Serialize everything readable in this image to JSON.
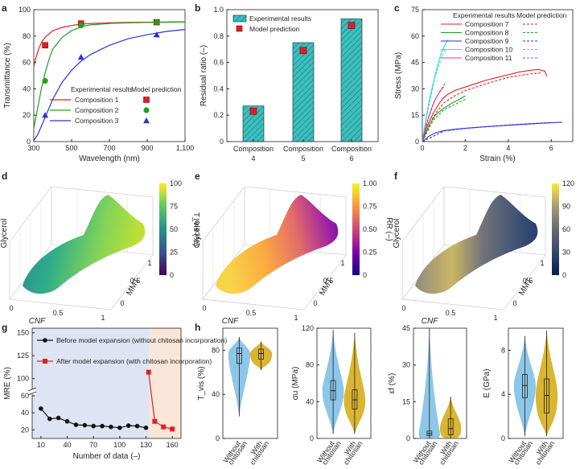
{
  "panels": [
    "a",
    "b",
    "c",
    "d",
    "e",
    "f",
    "g",
    "h"
  ],
  "colors": {
    "red": "#e41e26",
    "green": "#1ea21e",
    "blue": "#2b32d8",
    "magenta": "#e6338f",
    "cyan": "#2ed7e0",
    "teal_bar": "#3bbfbf",
    "violin_blue": "#7fc1e6",
    "violin_yellow": "#d6ad1c",
    "bg_blue": "#dde5f4",
    "bg_peach": "#fae6d9",
    "g_black": "#111111",
    "g_red": "#e41e26"
  },
  "chart_data": [
    {
      "panel": "a",
      "type": "line",
      "xlabel": "Wavelength (nm)",
      "ylabel": "Transmittance (%)",
      "xlim": [
        300,
        1100
      ],
      "ylim": [
        0,
        100
      ],
      "xticks": [
        "300",
        "500",
        "700",
        "900",
        "1,100"
      ],
      "yticks": [
        "0",
        "20",
        "40",
        "60",
        "80",
        "100"
      ],
      "legend_heading_left": "Experimental results",
      "legend_heading_right": "Model prediction",
      "series": [
        {
          "name": "Composition 1",
          "color": "red",
          "marker": "square",
          "x": [
            300,
            310,
            325,
            340,
            360,
            400,
            450,
            500,
            550,
            600,
            700,
            800,
            900,
            1000,
            1100
          ],
          "y": [
            57,
            63,
            70,
            75,
            79,
            84,
            86.5,
            88,
            89,
            89.5,
            90,
            90.3,
            90.5,
            90.7,
            90.8
          ],
          "pred_x": [
            360,
            550,
            950
          ],
          "pred_y": [
            73,
            89.5,
            90.5
          ]
        },
        {
          "name": "Composition 2",
          "color": "green",
          "marker": "circle",
          "x": [
            300,
            320,
            340,
            360,
            380,
            400,
            450,
            500,
            550,
            600,
            700,
            800,
            900,
            1000,
            1100
          ],
          "y": [
            10,
            25,
            40,
            52,
            62,
            70,
            79,
            84,
            87,
            88.5,
            89.5,
            90,
            90.3,
            90.5,
            90.6
          ],
          "pred_x": [
            360,
            550,
            950
          ],
          "pred_y": [
            46,
            88,
            90.5
          ]
        },
        {
          "name": "Composition 3",
          "color": "blue",
          "marker": "triangle",
          "x": [
            300,
            320,
            350,
            400,
            450,
            500,
            550,
            600,
            700,
            800,
            900,
            1000,
            1100
          ],
          "y": [
            1,
            5,
            15,
            32,
            45,
            54,
            61,
            66,
            73,
            78,
            81,
            83.5,
            85
          ],
          "pred_x": [
            360,
            550,
            950
          ],
          "pred_y": [
            20,
            64,
            81
          ]
        }
      ]
    },
    {
      "panel": "b",
      "type": "bar",
      "ylabel": "Residual ratio (–)",
      "ylim": [
        0,
        1.0
      ],
      "yticks": [
        "0",
        "0.2",
        "0.4",
        "0.6",
        "0.8",
        "1.0"
      ],
      "categories": [
        "Composition 4",
        "Composition 5",
        "Composition 6"
      ],
      "category_lines": [
        [
          "Composition",
          "4"
        ],
        [
          "Composition",
          "5"
        ],
        [
          "Composition",
          "6"
        ]
      ],
      "values": [
        0.27,
        0.75,
        0.93
      ],
      "predictions": [
        0.23,
        0.69,
        0.88
      ],
      "legend": [
        "Experimental results",
        "Model prediction"
      ]
    },
    {
      "panel": "c",
      "type": "line",
      "xlabel": "Strain (%)",
      "ylabel": "Stress (MPa)",
      "xlim": [
        0,
        7
      ],
      "ylim": [
        0,
        75
      ],
      "xticks": [
        "0",
        "2",
        "4",
        "6"
      ],
      "yticks": [
        "0",
        "15",
        "30",
        "45",
        "60",
        "75"
      ],
      "legend_heading_left": "Experimental results",
      "legend_heading_right": "Model prediction",
      "series": [
        {
          "name": "Composition 7",
          "color": "red",
          "x": [
            0,
            0.2,
            0.5,
            0.8,
            1.0,
            1.2,
            1.5,
            2,
            2.5,
            3,
            3.5,
            4,
            4.5,
            5,
            5.4,
            5.7,
            5.8
          ],
          "y": [
            0,
            8,
            16,
            22,
            25,
            27,
            29,
            31,
            33,
            35,
            36.5,
            38,
            39.5,
            40.5,
            41,
            40,
            37
          ],
          "pred_x": [
            0,
            0.5,
            1,
            1.5,
            2,
            3,
            4,
            5,
            5.5
          ],
          "pred_y": [
            0,
            14,
            22,
            26,
            29,
            33,
            36.5,
            38.5,
            39
          ]
        },
        {
          "name": "Composition 8",
          "color": "green",
          "x": [
            0,
            0.3,
            0.6,
            1.0,
            1.4,
            1.8,
            2.0
          ],
          "y": [
            0,
            9,
            15,
            19,
            22,
            24.5,
            26
          ],
          "pred_x": [
            0,
            0.5,
            1,
            1.5,
            2
          ],
          "pred_y": [
            0,
            12,
            18,
            21,
            24
          ]
        },
        {
          "name": "Composition 9",
          "color": "blue",
          "x": [
            0,
            0.3,
            0.6,
            1,
            1.5,
            2,
            3,
            4,
            5,
            6,
            6.5
          ],
          "y": [
            0,
            3,
            5,
            6.2,
            7,
            7.6,
            8.5,
            9.3,
            10,
            10.7,
            11
          ],
          "pred_x": [
            0,
            1,
            2,
            3,
            4,
            5,
            6
          ],
          "pred_y": [
            0,
            6,
            7.5,
            8.5,
            9.4,
            10.2,
            10.8
          ]
        },
        {
          "name": "Composition 10",
          "color": "cyan",
          "x": [
            0,
            0.1,
            0.3,
            0.5,
            0.7,
            0.9,
            1.1,
            1.2
          ],
          "y": [
            0,
            8,
            22,
            33,
            43,
            51,
            56,
            58
          ],
          "pred_x": [
            0,
            0.3,
            0.6,
            0.9,
            1.1
          ],
          "pred_y": [
            0,
            20,
            37,
            48,
            53
          ]
        },
        {
          "name": "Composition 11",
          "color": "magenta",
          "x": [
            0,
            0.2,
            0.4,
            0.6,
            0.8,
            0.9,
            1.0
          ],
          "y": [
            0,
            10,
            18,
            24,
            28,
            30,
            31
          ],
          "pred_x": [
            0,
            0.3,
            0.6,
            0.9,
            1.1
          ],
          "pred_y": [
            0,
            14,
            24,
            30,
            34
          ]
        }
      ]
    },
    {
      "panel": "d",
      "type": "heatmap",
      "xlabel": "CNF",
      "ylabel": "Glycerol",
      "zlabel": "MMT",
      "colorbar_label": "T_vis (%)",
      "colorbar_ticks": [
        "0",
        "25",
        "50",
        "75",
        "100"
      ],
      "colormap": "viridis",
      "x_ticks": [
        "0",
        "0.5",
        "1"
      ],
      "z_ticks": [
        "0",
        "0.5",
        "1"
      ]
    },
    {
      "panel": "e",
      "type": "heatmap",
      "xlabel": "CNF",
      "ylabel": "Glycerol",
      "zlabel": "MMT",
      "colorbar_label": "RR (–)",
      "colorbar_ticks": [
        "0",
        "0.25",
        "0.50",
        "0.75",
        "1.00"
      ],
      "colormap": "plasma",
      "x_ticks": [
        "0",
        "0.5",
        "1"
      ],
      "z_ticks": [
        "0",
        "0.5",
        "1"
      ]
    },
    {
      "panel": "f",
      "type": "heatmap",
      "xlabel": "CNF",
      "ylabel": "Glycerol",
      "zlabel": "MMT",
      "colorbar_label": "σu (MPa)",
      "colorbar_ticks": [
        "0",
        "30",
        "60",
        "90",
        "120"
      ],
      "colormap": "cividis",
      "x_ticks": [
        "0",
        "0.5",
        "1"
      ],
      "z_ticks": [
        "0",
        "0.5",
        "1"
      ]
    },
    {
      "panel": "g",
      "type": "line",
      "xlabel": "Number of data (–)",
      "ylabel": "MRE (%)",
      "xticks": [
        "10",
        "40",
        "70",
        "100",
        "130",
        "160"
      ],
      "yticks": [
        "20",
        "40",
        "60",
        "80",
        "100",
        "125",
        "150"
      ],
      "series": [
        {
          "name": "Before model expansion (without chitosan incorporation)",
          "color": "g_black",
          "marker": "circle",
          "x": [
            10,
            20,
            30,
            40,
            50,
            60,
            70,
            80,
            90,
            100,
            110,
            120,
            130
          ],
          "y": [
            45,
            33,
            34,
            30,
            26,
            25.5,
            24.5,
            24.5,
            23.5,
            22.5,
            25,
            24.5,
            22.5
          ]
        },
        {
          "name": "After model expansion (with chitosan incorporation)",
          "color": "g_red",
          "marker": "square",
          "x": [
            133,
            140,
            150,
            160
          ],
          "y": [
            107,
            30,
            23.5,
            21
          ]
        }
      ]
    },
    {
      "panel": "h",
      "type": "violin",
      "groups": [
        "Without chitosan",
        "With chitosan"
      ],
      "subplots": [
        {
          "ylabel": "T_vis (%)",
          "ylim": [
            0,
            100
          ],
          "yticks": [
            "0",
            "40",
            "80"
          ],
          "stats": [
            {
              "min": 20,
              "q1": 68,
              "median": 77,
              "q3": 82,
              "max": 92
            },
            {
              "min": 62,
              "q1": 72,
              "median": 77,
              "q3": 81,
              "max": 88
            }
          ]
        },
        {
          "ylabel": "σu (MPa)",
          "ylim": [
            0,
            120
          ],
          "yticks": [
            "0",
            "40",
            "80",
            "120"
          ],
          "stats": [
            {
              "min": 5,
              "q1": 42,
              "median": 52,
              "q3": 63,
              "max": 118
            },
            {
              "min": 5,
              "q1": 32,
              "median": 42,
              "q3": 53,
              "max": 115
            }
          ]
        },
        {
          "ylabel": "εf (%)",
          "ylim": [
            0,
            45
          ],
          "yticks": [
            "0",
            "15",
            "30",
            "45"
          ],
          "stats": [
            {
              "min": 0,
              "q1": 1.2,
              "median": 2,
              "q3": 3,
              "max": 45
            },
            {
              "min": 0,
              "q1": 1.5,
              "median": 4,
              "q3": 8,
              "max": 17
            }
          ]
        },
        {
          "ylabel": "E (GPa)",
          "ylim": [
            0,
            10
          ],
          "yticks": [
            "0",
            "4",
            "8"
          ],
          "stats": [
            {
              "min": 0.2,
              "q1": 3.7,
              "median": 4.8,
              "q3": 5.8,
              "max": 9.3
            },
            {
              "min": 0.2,
              "q1": 2.3,
              "median": 3.9,
              "q3": 5.4,
              "max": 9.8
            }
          ]
        }
      ]
    }
  ]
}
